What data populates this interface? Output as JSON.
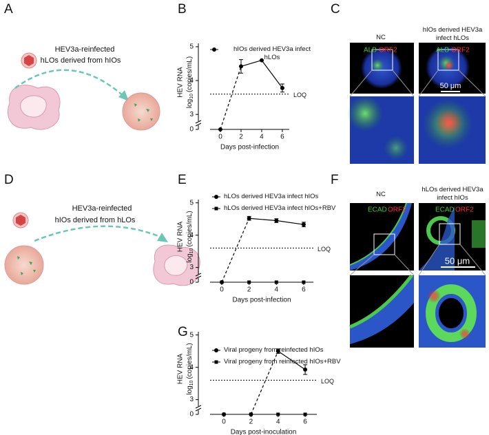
{
  "panel_labels": [
    "A",
    "B",
    "C",
    "D",
    "E",
    "F",
    "G"
  ],
  "panel_a": {
    "lines": [
      "HEV3a-reinfected",
      "hLOs derived from hIOs"
    ]
  },
  "panel_d": {
    "lines": [
      "HEV3a-reinfected",
      "hIOs derived from hLOs"
    ]
  },
  "panel_c": {
    "headers": [
      "NC",
      "hIOs derived HEV3a infect hLOs"
    ],
    "stain": [
      "ALB",
      "ORF2"
    ],
    "scale_bar": "50 μm"
  },
  "panel_f": {
    "headers": [
      "NC",
      "hLOs derived HEV3a infect hIOs"
    ],
    "stain": [
      "ECAD",
      "ORF2"
    ],
    "scale_bar": "50 μm"
  },
  "chart_data": [
    {
      "type": "line",
      "xlabel": "Days post-infection",
      "ylabel": [
        "HEV RNA",
        "log",
        "10",
        "(copies/mL)"
      ],
      "x": [
        0,
        2,
        4,
        6
      ],
      "xlim": [
        -1,
        6.67
      ],
      "xticks": [
        0,
        2,
        4,
        6
      ],
      "ylim": [
        0,
        5.1
      ],
      "yticks": [
        0,
        3,
        4,
        5
      ],
      "axis_break": [
        0.25,
        2.8
      ],
      "loq": {
        "value": 3.6,
        "label": "LOQ"
      },
      "series": [
        {
          "name": "hIOs derived HEV3a infect hLOs",
          "marker": "circle",
          "color": "#000000",
          "values": [
            0,
            4.42,
            4.6,
            3.78
          ],
          "errors": [
            0,
            0.2,
            0,
            0.12
          ],
          "segments": [
            "dashed",
            "solid",
            "solid"
          ]
        }
      ]
    },
    {
      "type": "line",
      "xlabel": "Days post-infection",
      "ylabel": [
        "HEV RNA",
        "log",
        "10",
        "(copies/mL)"
      ],
      "x": [
        0,
        2,
        4,
        6
      ],
      "xlim": [
        -0.86,
        6.71
      ],
      "xticks": [
        0,
        2,
        4,
        6
      ],
      "ylim": [
        0,
        5.1
      ],
      "yticks": [
        0,
        3,
        4,
        5
      ],
      "axis_break": [
        0.25,
        2.8
      ],
      "loq": {
        "value": 3.6,
        "label": "LOQ"
      },
      "series": [
        {
          "name": "hLOs derived HEV3a infect hIOs",
          "marker": "circle",
          "color": "#000000",
          "values": [
            0,
            4.52,
            4.45,
            4.33
          ],
          "errors": [
            0,
            0.06,
            0.06,
            0.07
          ],
          "segments": [
            "dashed",
            "solid",
            "solid"
          ]
        },
        {
          "name": "hLOs derived HEV3a infect hIOs+RBV",
          "marker": "square",
          "color": "#000000",
          "values": [
            0,
            0,
            0,
            0
          ],
          "errors": [
            0,
            0,
            0,
            0
          ],
          "segments": [
            "none",
            "none",
            "none"
          ]
        }
      ]
    },
    {
      "type": "line",
      "xlabel": "Days post-inoculation",
      "ylabel": [
        "HEV RNA",
        "log",
        "10",
        "(copies/mL)"
      ],
      "x": [
        0,
        2,
        4,
        6
      ],
      "xlim": [
        -1.02,
        6.86
      ],
      "xticks": [
        0,
        2,
        4,
        6
      ],
      "ylim": [
        0,
        5.1
      ],
      "yticks": [
        0,
        3,
        4,
        5
      ],
      "axis_break": [
        0.25,
        2.8
      ],
      "loq": {
        "value": 3.6,
        "label": "LOQ"
      },
      "series": [
        {
          "name": "Viral progeny from reinfected hIOs",
          "marker": "circle",
          "color": "#000000",
          "values": [
            0,
            0,
            4.5,
            3.93
          ],
          "errors": [
            0,
            0,
            0.07,
            0.15
          ],
          "segments": [
            "none",
            "dashed",
            "solid"
          ]
        },
        {
          "name": "Viral progeny from reinfected hIOs+RBV",
          "marker": "square",
          "color": "#000000",
          "values": [
            0,
            0,
            0,
            0
          ],
          "errors": [
            0,
            0,
            0,
            0
          ],
          "segments": [
            "none",
            "none",
            "none"
          ]
        }
      ]
    }
  ]
}
